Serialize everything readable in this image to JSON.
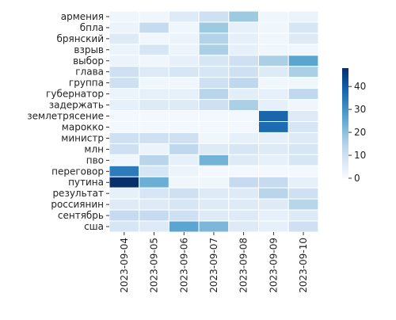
{
  "chart_data": {
    "type": "heatmap",
    "title": "",
    "xlabel": "",
    "ylabel": "",
    "colormap": "Blues",
    "colorbar": {
      "min": 0,
      "max": 48,
      "ticks": [
        0,
        10,
        20,
        30,
        40
      ]
    },
    "x": [
      "2023-09-04",
      "2023-09-05",
      "2023-09-06",
      "2023-09-07",
      "2023-09-08",
      "2023-09-09",
      "2023-09-10"
    ],
    "y": [
      "армения",
      "бпла",
      "брянский",
      "взрыв",
      "выбор",
      "глава",
      "группа",
      "губернатор",
      "задержать",
      "землетрясение",
      "марокко",
      "министр",
      "млн",
      "пво",
      "переговор",
      "путина",
      "результат",
      "россиянин",
      "сентябрь",
      "сша"
    ],
    "values": [
      [
        2,
        2,
        6,
        10,
        18,
        2,
        3
      ],
      [
        3,
        12,
        2,
        18,
        4,
        2,
        8
      ],
      [
        6,
        2,
        3,
        15,
        4,
        2,
        6
      ],
      [
        3,
        8,
        3,
        16,
        4,
        2,
        2
      ],
      [
        3,
        2,
        4,
        8,
        10,
        16,
        26
      ],
      [
        10,
        6,
        8,
        8,
        10,
        6,
        16
      ],
      [
        10,
        2,
        2,
        10,
        13,
        2,
        2
      ],
      [
        3,
        4,
        4,
        14,
        5,
        4,
        13
      ],
      [
        4,
        6,
        6,
        10,
        16,
        4,
        2
      ],
      [
        1,
        1,
        1,
        1,
        1,
        38,
        6
      ],
      [
        1,
        1,
        1,
        1,
        1,
        37,
        8
      ],
      [
        10,
        10,
        10,
        2,
        4,
        4,
        6
      ],
      [
        10,
        3,
        13,
        6,
        8,
        6,
        8
      ],
      [
        2,
        14,
        4,
        23,
        6,
        4,
        8
      ],
      [
        34,
        8,
        3,
        1,
        1,
        1,
        1
      ],
      [
        48,
        24,
        2,
        2,
        12,
        12,
        4
      ],
      [
        4,
        8,
        10,
        6,
        6,
        14,
        10
      ],
      [
        6,
        6,
        8,
        6,
        6,
        6,
        14
      ],
      [
        12,
        12,
        10,
        6,
        6,
        4,
        6
      ],
      [
        8,
        6,
        26,
        22,
        6,
        4,
        10
      ]
    ]
  }
}
